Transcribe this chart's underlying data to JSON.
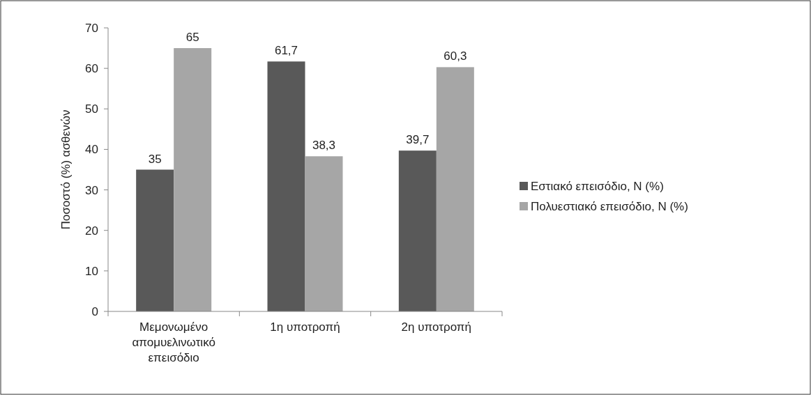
{
  "chart_data": {
    "type": "bar",
    "ylabel": "Ποσοστό (%) ασθενών",
    "categories": [
      "Μεμονωμένο απομυελινωτικό επεισόδιο",
      "1η υποτροπή",
      "2η υποτροπή"
    ],
    "series": [
      {
        "name": "Εστιακό επεισόδιο, N (%)",
        "color": "#595959",
        "values": [
          35,
          61.7,
          39.7
        ],
        "value_labels": [
          "35",
          "61,7",
          "39,7"
        ]
      },
      {
        "name": "Πολυεστιακό επεισόδιο, N (%)",
        "color": "#a6a6a6",
        "values": [
          65,
          38.3,
          60.3
        ],
        "value_labels": [
          "65",
          "38,3",
          "60,3"
        ]
      }
    ],
    "ylim": [
      0,
      70
    ],
    "yticks": [
      0,
      10,
      20,
      30,
      40,
      50,
      60,
      70
    ],
    "grid": false,
    "legend": "right"
  }
}
